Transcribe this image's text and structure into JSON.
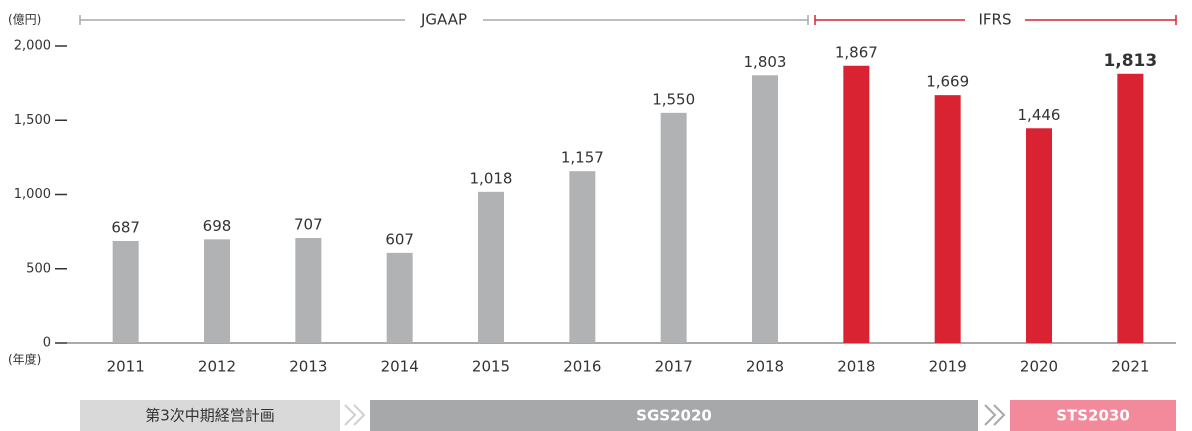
{
  "chart_data": {
    "type": "bar",
    "y_unit": "(億円)",
    "x_unit": "(年度)",
    "categories": [
      "2011",
      "2012",
      "2013",
      "2014",
      "2015",
      "2016",
      "2017",
      "2018",
      "2018",
      "2019",
      "2020",
      "2021"
    ],
    "values": [
      687,
      698,
      707,
      607,
      1018,
      1157,
      1550,
      1803,
      1867,
      1669,
      1446,
      1813
    ],
    "value_labels": [
      "687",
      "698",
      "707",
      "607",
      "1,018",
      "1,157",
      "1,550",
      "1,803",
      "1,867",
      "1,669",
      "1,446",
      "1,813"
    ],
    "colors": [
      "#b1b2b4",
      "#b1b2b4",
      "#b1b2b4",
      "#b1b2b4",
      "#b1b2b4",
      "#b1b2b4",
      "#b1b2b4",
      "#b1b2b4",
      "#d92332",
      "#d92332",
      "#d92332",
      "#d92332"
    ],
    "ylim": [
      0,
      2000
    ],
    "yticks": [
      0,
      500,
      {
        "value": 1000,
        "label": "1,000"
      },
      {
        "value": 1500,
        "label": "1,500"
      },
      {
        "value": 2000,
        "label": "2,000"
      }
    ],
    "standards": [
      "JGAAP",
      "IFRS"
    ],
    "periods": [
      "第3次中期経営計画",
      "SGS2020",
      "STS2030"
    ]
  }
}
